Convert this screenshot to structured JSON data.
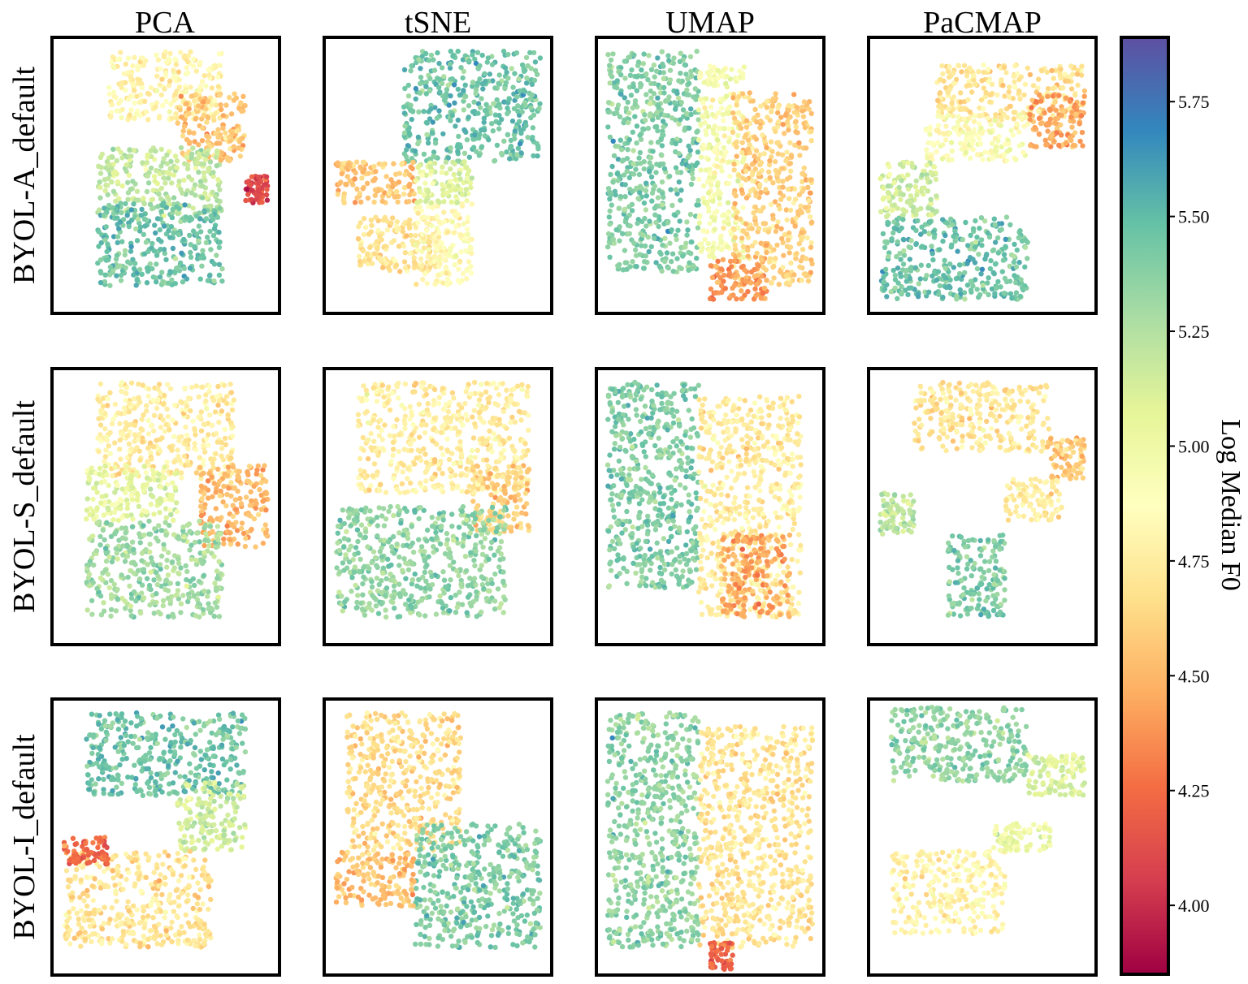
{
  "chart_data": {
    "type": "scatter",
    "title": "",
    "columns": [
      "PCA",
      "tSNE",
      "UMAP",
      "PaCMAP"
    ],
    "rows": [
      "BYOL-A_default",
      "BYOL-S_default",
      "BYOL-I_default"
    ],
    "colorbar": {
      "label": "Log Median F0",
      "range": [
        3.85,
        5.89
      ],
      "colormap": "Spectral",
      "ticks": [
        "4.00",
        "4.25",
        "4.50",
        "4.75",
        "5.00",
        "5.25",
        "5.50",
        "5.75"
      ],
      "tick_values": [
        4.0,
        4.25,
        4.5,
        4.75,
        5.0,
        5.25,
        5.5,
        5.75
      ]
    },
    "panels": [
      {
        "row": "BYOL-A_default",
        "method": "PCA",
        "clusters": [
          {
            "x": [
              0.25,
              0.75
            ],
            "y": [
              0.7,
              0.95
            ],
            "value": 4.8
          },
          {
            "x": [
              0.55,
              0.85
            ],
            "y": [
              0.55,
              0.8
            ],
            "value": 4.55
          },
          {
            "x": [
              0.85,
              0.95
            ],
            "y": [
              0.4,
              0.5
            ],
            "value": 4.1
          },
          {
            "x": [
              0.2,
              0.75
            ],
            "y": [
              0.35,
              0.6
            ],
            "value": 5.2
          },
          {
            "x": [
              0.2,
              0.75
            ],
            "y": [
              0.1,
              0.4
            ],
            "value": 5.45
          }
        ]
      },
      {
        "row": "BYOL-A_default",
        "method": "tSNE",
        "clusters": [
          {
            "x": [
              0.35,
              0.95
            ],
            "y": [
              0.55,
              0.95
            ],
            "value": 5.45
          },
          {
            "x": [
              0.05,
              0.4
            ],
            "y": [
              0.4,
              0.55
            ],
            "value": 4.55
          },
          {
            "x": [
              0.15,
              0.5
            ],
            "y": [
              0.15,
              0.35
            ],
            "value": 4.7
          },
          {
            "x": [
              0.4,
              0.65
            ],
            "y": [
              0.1,
              0.4
            ],
            "value": 4.85
          },
          {
            "x": [
              0.4,
              0.65
            ],
            "y": [
              0.4,
              0.55
            ],
            "value": 5.1
          }
        ]
      },
      {
        "row": "BYOL-A_default",
        "method": "UMAP",
        "clusters": [
          {
            "x": [
              0.05,
              0.45
            ],
            "y": [
              0.15,
              0.95
            ],
            "value": 5.4
          },
          {
            "x": [
              0.45,
              0.65
            ],
            "y": [
              0.2,
              0.9
            ],
            "value": 4.95
          },
          {
            "x": [
              0.6,
              0.95
            ],
            "y": [
              0.1,
              0.8
            ],
            "value": 4.6
          },
          {
            "x": [
              0.5,
              0.75
            ],
            "y": [
              0.05,
              0.2
            ],
            "value": 4.4
          }
        ]
      },
      {
        "row": "BYOL-A_default",
        "method": "PaCMAP",
        "clusters": [
          {
            "x": [
              0.3,
              0.95
            ],
            "y": [
              0.7,
              0.9
            ],
            "value": 4.7
          },
          {
            "x": [
              0.7,
              0.95
            ],
            "y": [
              0.6,
              0.8
            ],
            "value": 4.45
          },
          {
            "x": [
              0.25,
              0.7
            ],
            "y": [
              0.55,
              0.72
            ],
            "value": 4.9
          },
          {
            "x": [
              0.05,
              0.3
            ],
            "y": [
              0.35,
              0.55
            ],
            "value": 5.15
          },
          {
            "x": [
              0.05,
              0.7
            ],
            "y": [
              0.05,
              0.35
            ],
            "value": 5.45
          }
        ]
      },
      {
        "row": "BYOL-S_default",
        "method": "PCA",
        "clusters": [
          {
            "x": [
              0.2,
              0.8
            ],
            "y": [
              0.6,
              0.95
            ],
            "value": 4.75
          },
          {
            "x": [
              0.65,
              0.95
            ],
            "y": [
              0.35,
              0.65
            ],
            "value": 4.5
          },
          {
            "x": [
              0.15,
              0.55
            ],
            "y": [
              0.45,
              0.65
            ],
            "value": 5.05
          },
          {
            "x": [
              0.15,
              0.75
            ],
            "y": [
              0.1,
              0.45
            ],
            "value": 5.3
          }
        ]
      },
      {
        "row": "BYOL-S_default",
        "method": "tSNE",
        "clusters": [
          {
            "x": [
              0.15,
              0.9
            ],
            "y": [
              0.55,
              0.95
            ],
            "value": 4.75
          },
          {
            "x": [
              0.65,
              0.9
            ],
            "y": [
              0.4,
              0.65
            ],
            "value": 4.6
          },
          {
            "x": [
              0.05,
              0.8
            ],
            "y": [
              0.1,
              0.5
            ],
            "value": 5.35
          }
        ]
      },
      {
        "row": "BYOL-S_default",
        "method": "UMAP",
        "clusters": [
          {
            "x": [
              0.05,
              0.45
            ],
            "y": [
              0.2,
              0.95
            ],
            "value": 5.4
          },
          {
            "x": [
              0.45,
              0.9
            ],
            "y": [
              0.1,
              0.9
            ],
            "value": 4.75
          },
          {
            "x": [
              0.55,
              0.85
            ],
            "y": [
              0.1,
              0.4
            ],
            "value": 4.45
          }
        ]
      },
      {
        "row": "BYOL-S_default",
        "method": "PaCMAP",
        "clusters": [
          {
            "x": [
              0.2,
              0.8
            ],
            "y": [
              0.7,
              0.95
            ],
            "value": 4.7
          },
          {
            "x": [
              0.8,
              0.95
            ],
            "y": [
              0.6,
              0.75
            ],
            "value": 4.6
          },
          {
            "x": [
              0.05,
              0.2
            ],
            "y": [
              0.4,
              0.55
            ],
            "value": 5.2
          },
          {
            "x": [
              0.35,
              0.6
            ],
            "y": [
              0.1,
              0.4
            ],
            "value": 5.4
          },
          {
            "x": [
              0.6,
              0.85
            ],
            "y": [
              0.45,
              0.6
            ],
            "value": 4.75
          }
        ]
      },
      {
        "row": "BYOL-I_default",
        "method": "PCA",
        "clusters": [
          {
            "x": [
              0.15,
              0.85
            ],
            "y": [
              0.65,
              0.95
            ],
            "value": 5.45
          },
          {
            "x": [
              0.55,
              0.85
            ],
            "y": [
              0.45,
              0.7
            ],
            "value": 5.15
          },
          {
            "x": [
              0.05,
              0.7
            ],
            "y": [
              0.1,
              0.45
            ],
            "value": 4.7
          },
          {
            "x": [
              0.05,
              0.25
            ],
            "y": [
              0.4,
              0.5
            ],
            "value": 4.25
          }
        ]
      },
      {
        "row": "BYOL-I_default",
        "method": "tSNE",
        "clusters": [
          {
            "x": [
              0.1,
              0.6
            ],
            "y": [
              0.45,
              0.95
            ],
            "value": 4.65
          },
          {
            "x": [
              0.4,
              0.95
            ],
            "y": [
              0.1,
              0.55
            ],
            "value": 5.4
          },
          {
            "x": [
              0.05,
              0.4
            ],
            "y": [
              0.25,
              0.45
            ],
            "value": 4.55
          }
        ]
      },
      {
        "row": "BYOL-I_default",
        "method": "UMAP",
        "clusters": [
          {
            "x": [
              0.05,
              0.45
            ],
            "y": [
              0.1,
              0.95
            ],
            "value": 5.35
          },
          {
            "x": [
              0.45,
              0.95
            ],
            "y": [
              0.1,
              0.9
            ],
            "value": 4.7
          },
          {
            "x": [
              0.5,
              0.6
            ],
            "y": [
              0.02,
              0.12
            ],
            "value": 4.2
          }
        ]
      },
      {
        "row": "BYOL-I_default",
        "method": "PaCMAP",
        "clusters": [
          {
            "x": [
              0.1,
              0.7
            ],
            "y": [
              0.7,
              0.97
            ],
            "value": 5.35
          },
          {
            "x": [
              0.1,
              0.6
            ],
            "y": [
              0.15,
              0.45
            ],
            "value": 4.8
          },
          {
            "x": [
              0.55,
              0.8
            ],
            "y": [
              0.45,
              0.55
            ],
            "value": 5.0
          },
          {
            "x": [
              0.7,
              0.95
            ],
            "y": [
              0.65,
              0.8
            ],
            "value": 5.1
          }
        ]
      }
    ]
  }
}
